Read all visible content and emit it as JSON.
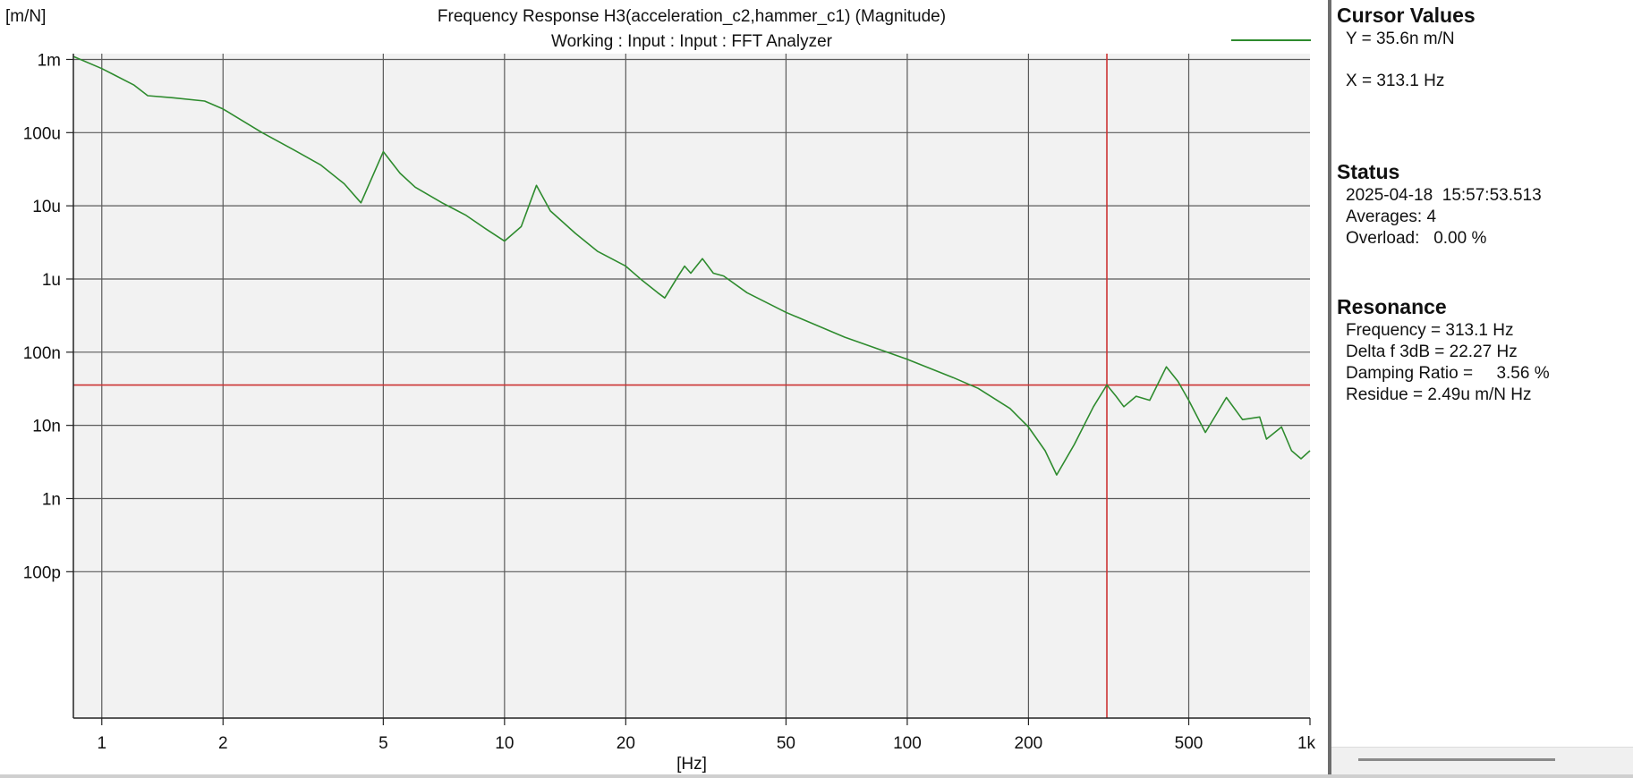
{
  "chart_data": {
    "type": "line",
    "title": "Frequency Response H3(acceleration_c2,hammer_c1) (Magnitude)",
    "subtitle": "Working : Input : Input : FFT Analyzer",
    "xlabel": "[Hz]",
    "ylabel": "[m/N]",
    "x_scale": "log",
    "y_scale": "log",
    "xlim": [
      0.85,
      1000
    ],
    "ylim": [
      1e-12,
      0.0012
    ],
    "grid": true,
    "x_ticks": [
      {
        "value": 1,
        "label": "1"
      },
      {
        "value": 2,
        "label": "2"
      },
      {
        "value": 5,
        "label": "5"
      },
      {
        "value": 10,
        "label": "10"
      },
      {
        "value": 20,
        "label": "20"
      },
      {
        "value": 50,
        "label": "50"
      },
      {
        "value": 100,
        "label": "100"
      },
      {
        "value": 200,
        "label": "200"
      },
      {
        "value": 500,
        "label": "500"
      },
      {
        "value": 1000,
        "label": "1k"
      }
    ],
    "y_ticks": [
      {
        "value": 0.001,
        "label": "1m"
      },
      {
        "value": 0.0001,
        "label": "100u"
      },
      {
        "value": 1e-05,
        "label": "10u"
      },
      {
        "value": 1e-06,
        "label": "1u"
      },
      {
        "value": 1e-07,
        "label": "100n"
      },
      {
        "value": 1e-08,
        "label": "10n"
      },
      {
        "value": 1e-09,
        "label": "1n"
      },
      {
        "value": 1e-10,
        "label": "100p"
      }
    ],
    "legend_position": "top-right",
    "series": [
      {
        "color": "#2e8b2e",
        "points": [
          [
            0.85,
            0.0011
          ],
          [
            1.0,
            0.00075
          ],
          [
            1.2,
            0.00045
          ],
          [
            1.3,
            0.00032
          ],
          [
            1.5,
            0.0003
          ],
          [
            1.8,
            0.00027
          ],
          [
            2.0,
            0.00021
          ],
          [
            2.5,
            0.0001
          ],
          [
            3.0,
            5.8e-05
          ],
          [
            3.5,
            3.6e-05
          ],
          [
            4.0,
            2e-05
          ],
          [
            4.4,
            1.1e-05
          ],
          [
            5.0,
            5.5e-05
          ],
          [
            5.5,
            2.8e-05
          ],
          [
            6.0,
            1.8e-05
          ],
          [
            7.0,
            1.1e-05
          ],
          [
            8.0,
            7.5e-06
          ],
          [
            9.0,
            4.8e-06
          ],
          [
            10.0,
            3.3e-06
          ],
          [
            11.0,
            5.2e-06
          ],
          [
            12.0,
            1.9e-05
          ],
          [
            13.0,
            8.5e-06
          ],
          [
            15.0,
            4.2e-06
          ],
          [
            17.0,
            2.4e-06
          ],
          [
            20.0,
            1.5e-06
          ],
          [
            22.0,
            9.5e-07
          ],
          [
            24.0,
            6.5e-07
          ],
          [
            25.0,
            5.5e-07
          ],
          [
            27.0,
            1.1e-06
          ],
          [
            28.0,
            1.5e-06
          ],
          [
            29.0,
            1.2e-06
          ],
          [
            31.0,
            1.9e-06
          ],
          [
            33.0,
            1.2e-06
          ],
          [
            35.0,
            1.1e-06
          ],
          [
            40.0,
            6.5e-07
          ],
          [
            50.0,
            3.5e-07
          ],
          [
            70.0,
            1.6e-07
          ],
          [
            100.0,
            8e-08
          ],
          [
            130.0,
            4.5e-08
          ],
          [
            150.0,
            3.2e-08
          ],
          [
            180.0,
            1.7e-08
          ],
          [
            200.0,
            9.5e-09
          ],
          [
            220.0,
            4.5e-09
          ],
          [
            235.0,
            2.1e-09
          ],
          [
            260.0,
            5.5e-09
          ],
          [
            290.0,
            1.8e-08
          ],
          [
            313.1,
            3.56e-08
          ],
          [
            330.0,
            2.5e-08
          ],
          [
            345.0,
            1.8e-08
          ],
          [
            370.0,
            2.5e-08
          ],
          [
            400.0,
            2.2e-08
          ],
          [
            440.0,
            6.3e-08
          ],
          [
            470.0,
            4e-08
          ],
          [
            500.0,
            2.2e-08
          ],
          [
            550.0,
            8e-09
          ],
          [
            620.0,
            2.4e-08
          ],
          [
            680.0,
            1.2e-08
          ],
          [
            750.0,
            1.3e-08
          ],
          [
            780.0,
            6.5e-09
          ],
          [
            850.0,
            9.5e-09
          ],
          [
            900.0,
            4.5e-09
          ],
          [
            950.0,
            3.5e-09
          ],
          [
            1000.0,
            4.5e-09
          ]
        ]
      }
    ],
    "cursor": {
      "x": 313.1,
      "y": 3.56e-08,
      "color": "#cc3333"
    }
  },
  "side_panel": {
    "cursor_values": {
      "title": "Cursor Values",
      "y_text": "Y = 35.6n m/N",
      "x_text": "X = 313.1 Hz"
    },
    "status": {
      "title": "Status",
      "datetime": "2025-04-18  15:57:53.513",
      "averages": "Averages: 4",
      "overload": "Overload:   0.00 %"
    },
    "resonance": {
      "title": "Resonance",
      "frequency": "Frequency = 313.1 Hz",
      "delta_f": "Delta f 3dB = 22.27 Hz",
      "damping": "Damping Ratio =     3.56 %",
      "residue": "Residue = 2.49u m/N Hz"
    }
  }
}
